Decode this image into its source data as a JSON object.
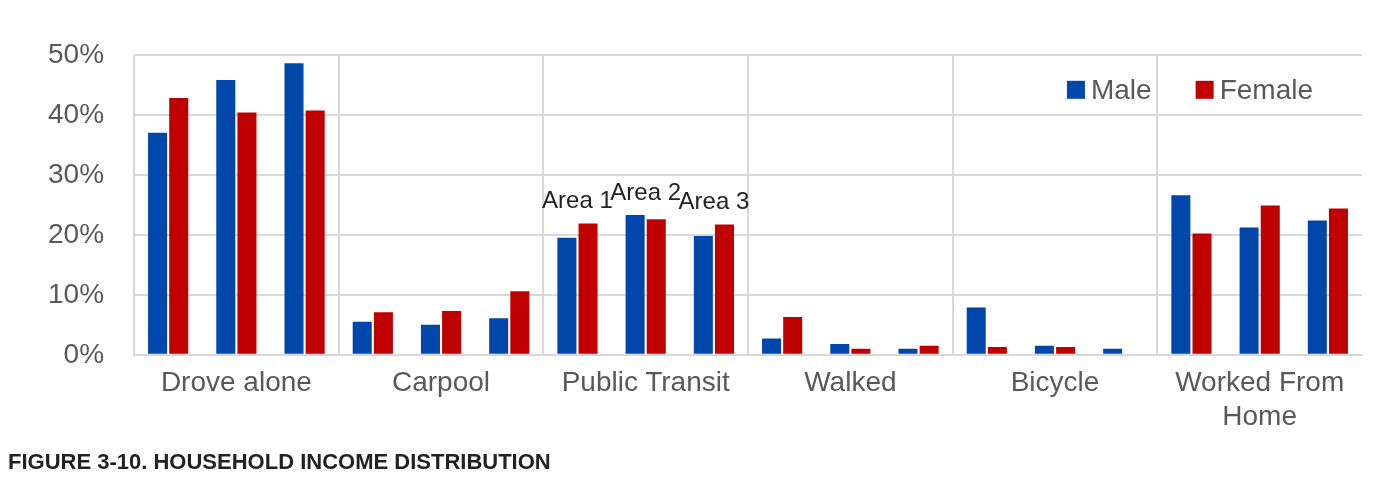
{
  "chart_data": {
    "type": "bar",
    "categories": [
      null,
      "Drove alone",
      null,
      null,
      "Carpool",
      null,
      null,
      "Public Transit",
      null,
      null,
      "Walked",
      null,
      null,
      "Bicycle",
      null,
      null,
      "Worked From Home",
      null
    ],
    "series": [
      {
        "name": "Male",
        "color": "#0047ab",
        "values": [
          37,
          45.8,
          48.6,
          5.5,
          5.0,
          6.1,
          19.5,
          23.3,
          19.8,
          2.7,
          1.8,
          1.0,
          7.9,
          1.5,
          1.0,
          26.6,
          21.2,
          22.4
        ]
      },
      {
        "name": "Female",
        "color": "#c00000",
        "values": [
          42.8,
          40.4,
          40.7,
          7.1,
          7.3,
          10.6,
          21.9,
          22.6,
          21.7,
          6.3,
          1.0,
          1.5,
          1.3,
          1.3,
          0,
          20.2,
          24.9,
          24.4
        ]
      }
    ],
    "ylim": [
      0,
      50
    ],
    "yticks": [
      {
        "value": 0,
        "label": "0%"
      },
      {
        "value": 10,
        "label": "10%"
      },
      {
        "value": 20,
        "label": "20%"
      },
      {
        "value": 30,
        "label": "30%"
      },
      {
        "value": 40,
        "label": "40%"
      },
      {
        "value": 50,
        "label": "50%"
      }
    ],
    "grid": true,
    "legend": "top right",
    "annotations": [
      "Area 1",
      "Area 2",
      "Area 3",
      "FIGURE 3-10. HOUSEHOLD INCOME DISTRIBUTION"
    ]
  }
}
